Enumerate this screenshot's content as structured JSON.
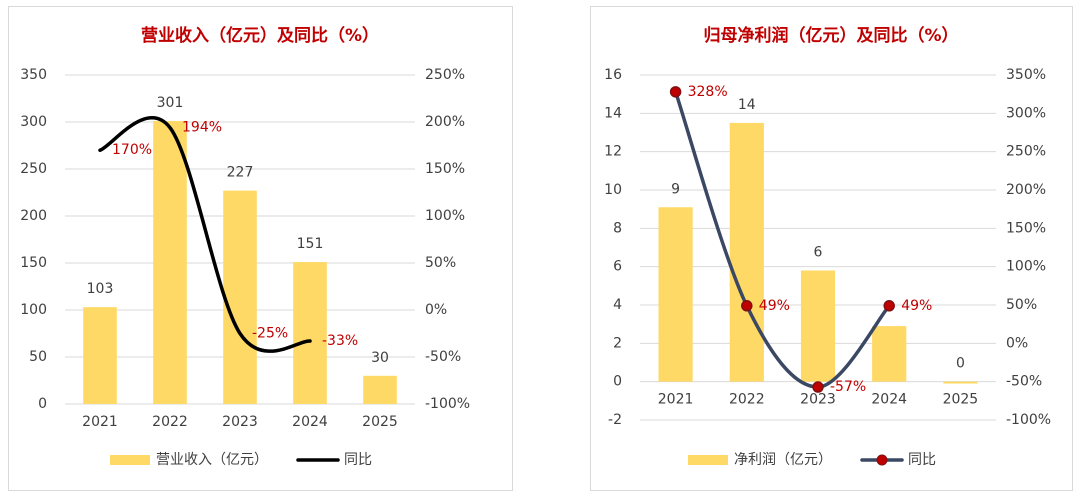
{
  "chart_data": [
    {
      "type": "bar",
      "title": "营业收入（亿元）及同比（%）",
      "categories": [
        "2021",
        "2022",
        "2023",
        "2024",
        "2025"
      ],
      "series": [
        {
          "name": "营业收入（亿元）",
          "type": "bar",
          "color": "#ffd966",
          "values": [
            103,
            301,
            227,
            151,
            30
          ]
        },
        {
          "name": "同比",
          "type": "line",
          "axis": "y2",
          "color": "#000000",
          "marker": false,
          "values": [
            170,
            194,
            -25,
            -33,
            null
          ],
          "value_labels": [
            "170%",
            "194%",
            "-25%",
            "-33%",
            null
          ]
        }
      ],
      "ylim": [
        0,
        350
      ],
      "yticks": [
        0,
        50,
        100,
        150,
        200,
        250,
        300,
        350
      ],
      "y2lim": [
        -100,
        250
      ],
      "y2ticks": [
        {
          "value": -100,
          "label": "-100%"
        },
        {
          "value": -50,
          "label": "-50%"
        },
        {
          "value": 0,
          "label": "0%"
        },
        {
          "value": 50,
          "label": "50%"
        },
        {
          "value": 100,
          "label": "100%"
        },
        {
          "value": 150,
          "label": "150%"
        },
        {
          "value": 200,
          "label": "200%"
        },
        {
          "value": 250,
          "label": "250%"
        }
      ],
      "grid": true,
      "legend": "bottom"
    },
    {
      "type": "bar",
      "title": "归母净利润（亿元）及同比（%）",
      "categories": [
        "2021",
        "2022",
        "2023",
        "2024",
        "2025"
      ],
      "series": [
        {
          "name": "净利润（亿元）",
          "type": "bar",
          "color": "#ffd966",
          "values": [
            9.1,
            13.5,
            5.8,
            2.9,
            -0.1
          ],
          "value_labels": [
            "9",
            "14",
            "6",
            null,
            "0"
          ]
        },
        {
          "name": "同比",
          "type": "line",
          "axis": "y2",
          "color": "#3b4863",
          "marker": true,
          "values": [
            328,
            49,
            -57,
            49,
            null
          ],
          "value_labels": [
            "328%",
            "49%",
            "-57%",
            "49%",
            null
          ]
        }
      ],
      "ylim": [
        -2,
        16
      ],
      "yticks": [
        -2,
        0,
        2,
        4,
        6,
        8,
        10,
        12,
        14,
        16
      ],
      "y2lim": [
        -100,
        350
      ],
      "y2ticks": [
        {
          "value": -100,
          "label": "-100%"
        },
        {
          "value": -50,
          "label": "-50%"
        },
        {
          "value": 0,
          "label": "0%"
        },
        {
          "value": 50,
          "label": "50%"
        },
        {
          "value": 100,
          "label": "100%"
        },
        {
          "value": 150,
          "label": "150%"
        },
        {
          "value": 200,
          "label": "200%"
        },
        {
          "value": 250,
          "label": "250%"
        },
        {
          "value": 300,
          "label": "300%"
        },
        {
          "value": 350,
          "label": "350%"
        }
      ],
      "grid": true,
      "legend": "bottom"
    }
  ]
}
